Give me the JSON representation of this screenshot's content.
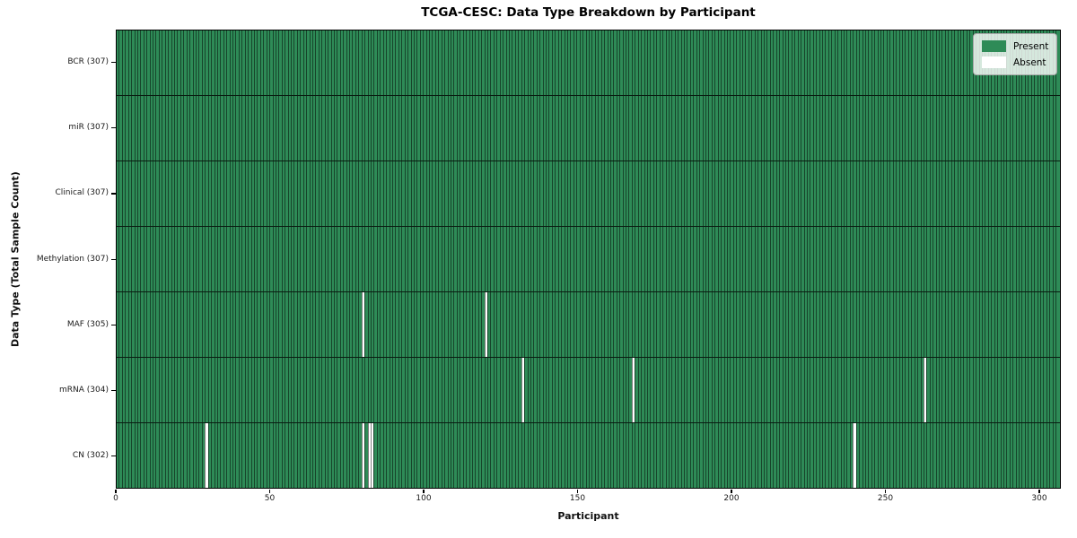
{
  "title": "TCGA-CESC: Data Type Breakdown by Participant",
  "xlabel": "Participant",
  "ylabel": "Data Type (Total Sample Count)",
  "colors": {
    "present": "#2e8b57",
    "absent": "#ffffff"
  },
  "chart_data": {
    "type": "heatmap",
    "title": "TCGA-CESC: Data Type Breakdown by Participant",
    "xlabel": "Participant",
    "ylabel": "Data Type (Total Sample Count)",
    "n_participants": 307,
    "x_range": [
      0,
      307
    ],
    "x_ticks": [
      0,
      50,
      100,
      150,
      200,
      250,
      300
    ],
    "grid": false,
    "legend": [
      "Present",
      "Absent"
    ],
    "legend_position": "upper right",
    "rows": [
      {
        "data_type": "BCR",
        "label": "BCR (307)",
        "present_count": 307,
        "absent_participants": []
      },
      {
        "data_type": "miR",
        "label": "miR (307)",
        "present_count": 307,
        "absent_participants": []
      },
      {
        "data_type": "Clinical",
        "label": "Clinical (307)",
        "present_count": 307,
        "absent_participants": []
      },
      {
        "data_type": "Methylation",
        "label": "Methylation (307)",
        "present_count": 307,
        "absent_participants": []
      },
      {
        "data_type": "MAF",
        "label": "MAF (305)",
        "present_count": 305,
        "absent_participants": [
          80,
          120
        ]
      },
      {
        "data_type": "mRNA",
        "label": "mRNA (304)",
        "present_count": 304,
        "absent_participants": [
          132,
          168,
          263
        ]
      },
      {
        "data_type": "CN",
        "label": "CN (302)",
        "present_count": 302,
        "absent_participants": [
          29,
          80,
          82,
          83,
          240
        ]
      }
    ]
  }
}
